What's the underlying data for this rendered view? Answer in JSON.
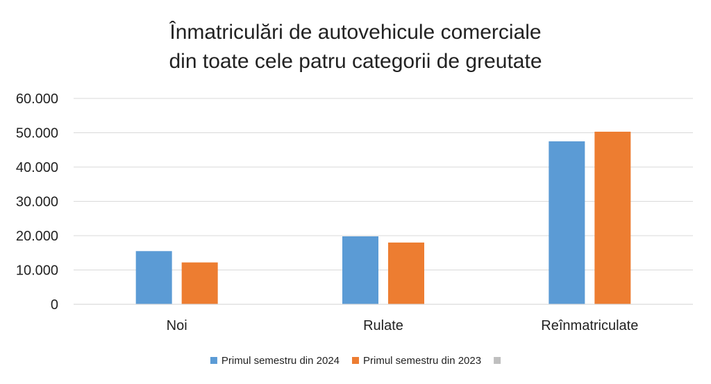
{
  "chart_data": {
    "type": "bar",
    "title_lines": [
      "Înmatriculări de autovehicule comerciale",
      "din toate cele patru categorii de greutate"
    ],
    "categories": [
      "Noi",
      "Rulate",
      "Reînmatriculate"
    ],
    "series": [
      {
        "name": "Primul semestru din 2024",
        "color": "#5b9bd5",
        "values": [
          15500,
          19800,
          47500
        ]
      },
      {
        "name": "Primul semestru din 2023",
        "color": "#ed7d31",
        "values": [
          12200,
          18000,
          50300
        ]
      },
      {
        "name": "",
        "color": "#bfbfbf",
        "values": [
          0,
          0,
          0
        ]
      }
    ],
    "yticks": [
      "0",
      "10.000",
      "20.000",
      "30.000",
      "40.000",
      "50.000",
      "60.000"
    ],
    "ylim": [
      0,
      60000
    ],
    "grid": true,
    "legend_position": "bottom"
  }
}
